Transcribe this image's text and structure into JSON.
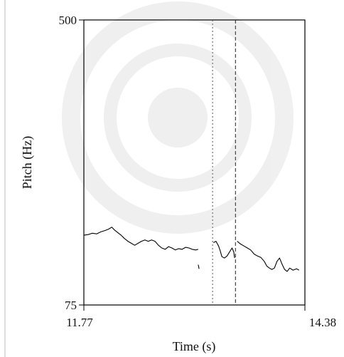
{
  "chart_data": {
    "type": "line",
    "title": "",
    "xlabel": "Time (s)",
    "ylabel": "Pitch (Hz)",
    "xlim": [
      11.77,
      14.38
    ],
    "ylim": [
      75,
      500
    ],
    "x_tick_labels": [
      "11.77",
      "14.38"
    ],
    "y_tick_labels": [
      "500",
      "75"
    ],
    "grid": false,
    "legend": "none",
    "line_color": "#000000",
    "markers": [
      {
        "x": 13.29,
        "style": "dotted"
      },
      {
        "x": 13.56,
        "style": "dashed"
      }
    ],
    "series": [
      {
        "segments": [
          [
            [
              11.77,
              179
            ],
            [
              11.82,
              180
            ],
            [
              11.87,
              182
            ],
            [
              11.92,
              181
            ],
            [
              11.97,
              184
            ],
            [
              12.02,
              186
            ],
            [
              12.06,
              188
            ],
            [
              12.1,
              191
            ],
            [
              12.13,
              187
            ],
            [
              12.17,
              183
            ],
            [
              12.21,
              179
            ],
            [
              12.25,
              174
            ],
            [
              12.29,
              170
            ],
            [
              12.33,
              167
            ],
            [
              12.37,
              164
            ],
            [
              12.41,
              167
            ],
            [
              12.45,
              170
            ],
            [
              12.49,
              172
            ],
            [
              12.53,
              170
            ],
            [
              12.57,
              172
            ],
            [
              12.61,
              170
            ],
            [
              12.65,
              164
            ],
            [
              12.69,
              160
            ],
            [
              12.73,
              158
            ],
            [
              12.77,
              162
            ],
            [
              12.81,
              160
            ],
            [
              12.85,
              157
            ],
            [
              12.89,
              159
            ],
            [
              12.93,
              158
            ],
            [
              12.97,
              161
            ],
            [
              13.01,
              160
            ],
            [
              13.05,
              158
            ],
            [
              13.09,
              157
            ],
            [
              13.12,
              158
            ]
          ],
          [
            [
              13.12,
              135
            ],
            [
              13.13,
              129
            ]
          ],
          [
            [
              13.3,
              168
            ],
            [
              13.33,
              170
            ],
            [
              13.36,
              163
            ],
            [
              13.38,
              156
            ],
            [
              13.4,
              147
            ],
            [
              13.43,
              145
            ],
            [
              13.46,
              148
            ],
            [
              13.49,
              154
            ],
            [
              13.52,
              160
            ],
            [
              13.54,
              154
            ],
            [
              13.55,
              145
            ]
          ],
          [
            [
              13.58,
              170
            ],
            [
              13.62,
              166
            ],
            [
              13.66,
              163
            ],
            [
              13.7,
              160
            ],
            [
              13.74,
              157
            ],
            [
              13.78,
              151
            ],
            [
              13.82,
              148
            ],
            [
              13.86,
              146
            ],
            [
              13.9,
              140
            ],
            [
              13.93,
              133
            ],
            [
              13.96,
              130
            ],
            [
              13.99,
              128
            ],
            [
              14.02,
              130
            ],
            [
              14.05,
              140
            ],
            [
              14.08,
              145
            ],
            [
              14.11,
              136
            ],
            [
              14.14,
              128
            ],
            [
              14.17,
              125
            ],
            [
              14.2,
              130
            ],
            [
              14.24,
              127
            ],
            [
              14.28,
              129
            ],
            [
              14.31,
              127
            ]
          ]
        ]
      }
    ]
  }
}
